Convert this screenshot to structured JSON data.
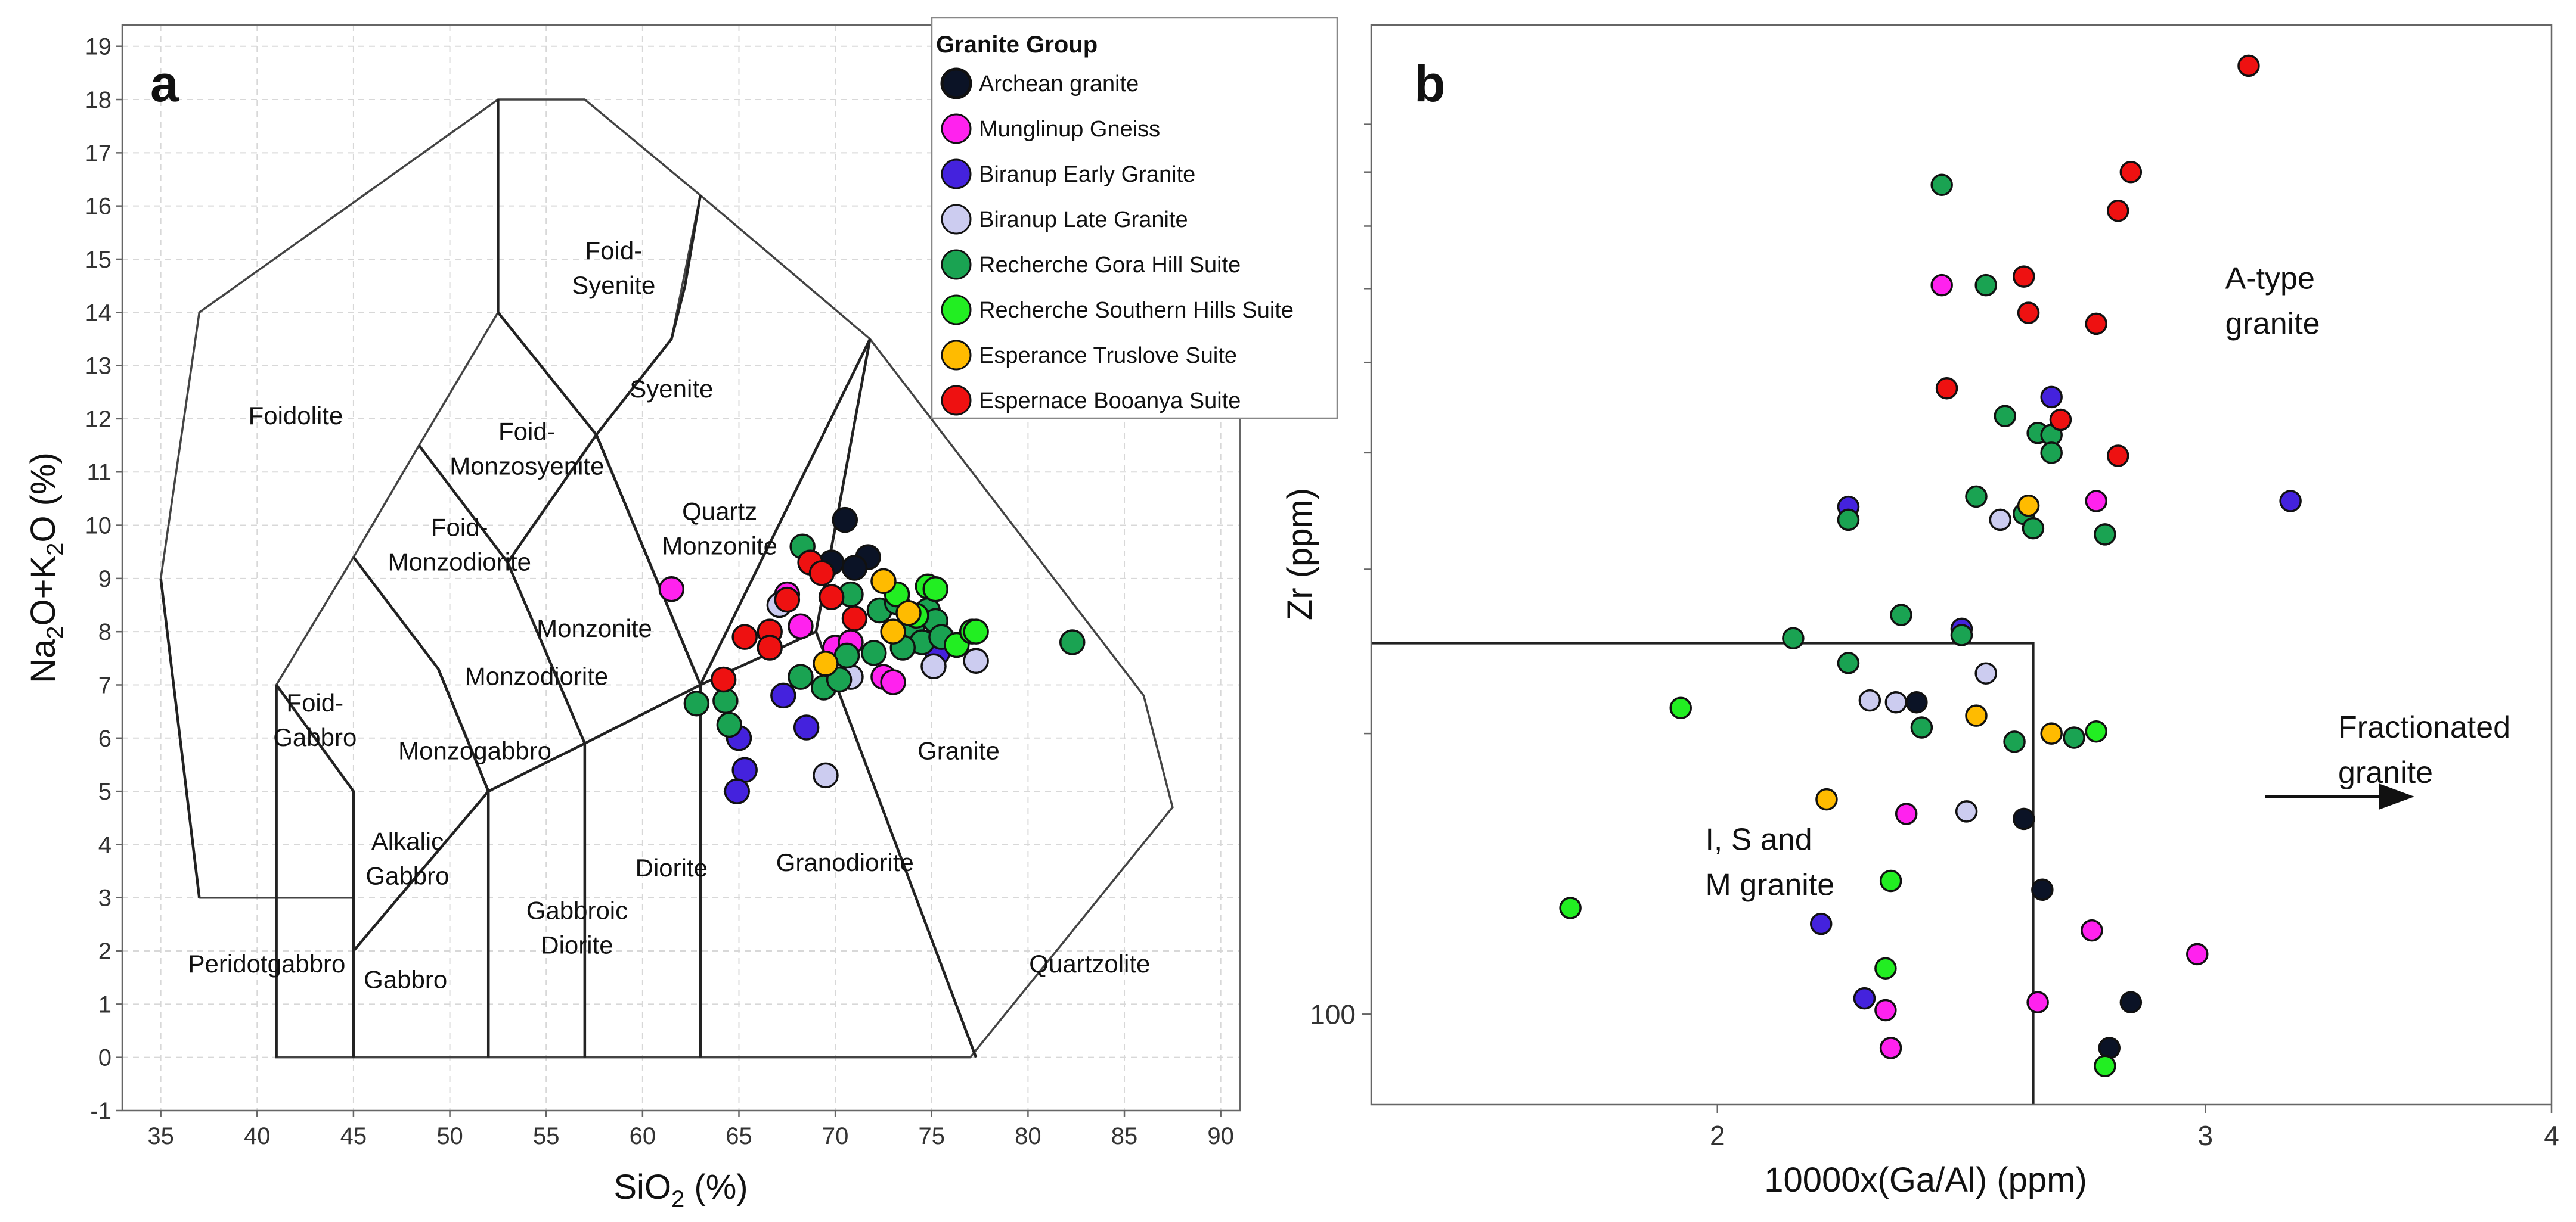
{
  "colors": {
    "archean": "#0b1326",
    "munglinup": "#ff22ee",
    "biranup_early": "#4422dd",
    "biranup_late": "#ccccf0",
    "gora": "#1aa352",
    "southern": "#22ee22",
    "truslove": "#ffbb00",
    "booanya": "#ee1111"
  },
  "chart_data": [
    {
      "type": "scatter",
      "panel": "a",
      "xlabel_main": "SiO",
      "xlabel_sub": "2",
      "xlabel_tail": " (%)",
      "ylabel_parts": [
        "Na",
        "2",
        "O+K",
        "2",
        "O (%)"
      ],
      "xlim": [
        33,
        91
      ],
      "ylim": [
        -1,
        19.4
      ],
      "xticks": [
        35,
        40,
        45,
        50,
        55,
        60,
        65,
        70,
        75,
        80,
        85,
        90
      ],
      "yticks": [
        -1,
        0,
        1,
        2,
        3,
        4,
        5,
        6,
        7,
        8,
        9,
        10,
        11,
        12,
        13,
        14,
        15,
        16,
        17,
        18,
        19
      ],
      "fields": [
        {
          "name": "Foidolite",
          "lines": [
            "Foidolite"
          ]
        },
        {
          "name": "Foid-Syenite",
          "lines": [
            "Foid-",
            "Syenite"
          ]
        },
        {
          "name": "Syenite",
          "lines": [
            "Syenite"
          ]
        },
        {
          "name": "Foid-Monzosyenite",
          "lines": [
            "Foid-",
            "Monzosyenite"
          ]
        },
        {
          "name": "Quartz Monzonite",
          "lines": [
            "Quartz",
            "Monzonite"
          ]
        },
        {
          "name": "Foid-Monzodiorite",
          "lines": [
            "Foid-",
            "Monzodiorite"
          ]
        },
        {
          "name": "Monzonite",
          "lines": [
            "Monzonite"
          ]
        },
        {
          "name": "Monzodiorite",
          "lines": [
            "Monzodiorite"
          ]
        },
        {
          "name": "Foid-Gabbro",
          "lines": [
            "Foid-",
            "Gabbro"
          ]
        },
        {
          "name": "Monzogabbro",
          "lines": [
            "Monzogabbro"
          ]
        },
        {
          "name": "Granite",
          "lines": [
            "Granite"
          ]
        },
        {
          "name": "Alkalic Gabbro",
          "lines": [
            "Alkalic",
            "Gabbro"
          ]
        },
        {
          "name": "Diorite",
          "lines": [
            "Diorite"
          ]
        },
        {
          "name": "Granodiorite",
          "lines": [
            "Granodiorite"
          ]
        },
        {
          "name": "Gabbroic Diorite",
          "lines": [
            "Gabbroic",
            "Diorite"
          ]
        },
        {
          "name": "Peridotgabbro",
          "lines": [
            "Peridotgabbro"
          ]
        },
        {
          "name": "Gabbro",
          "lines": [
            "Gabbro"
          ]
        },
        {
          "name": "Quartzolite",
          "lines": [
            "Quartzolite"
          ]
        }
      ],
      "series": [
        {
          "name": "Archean granite",
          "key": "archean",
          "points": [
            [
              70.5,
              10.1
            ],
            [
              71.7,
              9.4
            ],
            [
              69.8,
              9.3
            ],
            [
              71.0,
              9.2
            ]
          ]
        },
        {
          "name": "Munglinup Gneiss",
          "key": "munglinup",
          "points": [
            [
              61.5,
              8.8
            ],
            [
              67.5,
              8.7
            ],
            [
              68.2,
              8.1
            ],
            [
              70.0,
              7.7
            ],
            [
              70.8,
              7.8
            ],
            [
              72.5,
              7.15
            ],
            [
              73.0,
              7.05
            ]
          ]
        },
        {
          "name": "Biranup Early Granite",
          "key": "biranup_early",
          "points": [
            [
              67.3,
              6.8
            ],
            [
              65.0,
              6.0
            ],
            [
              65.3,
              5.4
            ],
            [
              64.9,
              5.0
            ],
            [
              68.5,
              6.2
            ],
            [
              75.3,
              7.6
            ]
          ]
        },
        {
          "name": "Biranup Late Granite",
          "key": "biranup_late",
          "points": [
            [
              67.1,
              8.5
            ],
            [
              70.8,
              7.15
            ],
            [
              75.1,
              7.35
            ],
            [
              77.3,
              7.45
            ],
            [
              69.5,
              5.3
            ]
          ]
        },
        {
          "name": "Recherche Gora Hill Suite",
          "key": "gora",
          "points": [
            [
              68.3,
              9.6
            ],
            [
              70.8,
              8.7
            ],
            [
              72.3,
              8.4
            ],
            [
              73.2,
              8.55
            ],
            [
              73.5,
              7.9
            ],
            [
              74.0,
              8.1
            ],
            [
              74.8,
              8.4
            ],
            [
              75.2,
              8.2
            ],
            [
              72.0,
              7.6
            ],
            [
              70.6,
              7.55
            ],
            [
              69.4,
              6.95
            ],
            [
              68.2,
              7.15
            ],
            [
              70.2,
              7.1
            ],
            [
              74.5,
              7.8
            ],
            [
              75.5,
              7.9
            ],
            [
              73.5,
              7.7
            ],
            [
              62.8,
              6.65
            ],
            [
              64.3,
              6.7
            ],
            [
              64.5,
              6.25
            ],
            [
              82.3,
              7.8
            ]
          ]
        },
        {
          "name": "Recherche Southern Hills Suite",
          "key": "southern",
          "points": [
            [
              73.2,
              8.7
            ],
            [
              74.8,
              8.85
            ],
            [
              75.2,
              8.8
            ],
            [
              76.3,
              7.75
            ],
            [
              77.1,
              8.0
            ],
            [
              77.3,
              8.0
            ],
            [
              74.2,
              8.3
            ]
          ]
        },
        {
          "name": "Esperance Truslove Suite",
          "key": "truslove",
          "points": [
            [
              72.5,
              8.95
            ],
            [
              73.8,
              8.35
            ],
            [
              69.5,
              7.4
            ],
            [
              73.0,
              8.0
            ]
          ]
        },
        {
          "name": "Espernace Booanya Suite",
          "key": "booanya",
          "points": [
            [
              68.7,
              9.3
            ],
            [
              69.3,
              9.1
            ],
            [
              67.5,
              8.6
            ],
            [
              69.8,
              8.65
            ],
            [
              71.0,
              8.25
            ],
            [
              65.3,
              7.9
            ],
            [
              66.6,
              8.0
            ],
            [
              66.6,
              7.7
            ],
            [
              64.2,
              7.1
            ]
          ]
        }
      ],
      "legend": {
        "title": "Granite Group",
        "placement": "top-right",
        "entries": [
          "Archean granite",
          "Munglinup Gneiss",
          "Biranup Early Granite",
          "Biranup Late Granite",
          "Recherche Gora Hill Suite",
          "Recherche Southern Hills Suite",
          "Esperance Truslove Suite",
          "Espernace Booanya Suite"
        ]
      }
    },
    {
      "type": "scatter",
      "panel": "b",
      "xlabel": "10000x(Ga/Al) (ppm)",
      "ylabel": "Zr (ppm)",
      "xscale": "log",
      "yscale": "log",
      "xlim": [
        1.5,
        4.0
      ],
      "ylim": [
        80,
        1150
      ],
      "xticks": [
        2,
        3,
        4
      ],
      "ytick_labels": [
        "100"
      ],
      "ytick_label_values": [
        100
      ],
      "yminor_ticks": [
        200,
        300,
        400,
        500,
        600,
        700,
        800,
        900
      ],
      "boundary": {
        "ga_al": 2.6,
        "zr": 250
      },
      "regions": [
        {
          "name": "A-type granite",
          "lines": [
            "A-type",
            "granite"
          ]
        },
        {
          "name": "I, S and M granite",
          "lines": [
            "I, S and",
            "M granite"
          ]
        },
        {
          "name": "Fractionated granite",
          "lines": [
            "Fractionated",
            "granite"
          ]
        }
      ],
      "series": [
        {
          "name": "Archean granite",
          "key": "archean",
          "points": [
            [
              2.36,
              216
            ],
            [
              2.58,
              162
            ],
            [
              2.62,
              136
            ],
            [
              2.82,
              103
            ],
            [
              2.77,
              92
            ]
          ]
        },
        {
          "name": "Munglinup Gneiss",
          "key": "munglinup",
          "points": [
            [
              2.41,
              605
            ],
            [
              2.74,
              355
            ],
            [
              2.34,
              164
            ],
            [
              2.73,
              123
            ],
            [
              2.98,
              116
            ],
            [
              2.61,
              103
            ],
            [
              2.3,
              101
            ],
            [
              2.31,
              92
            ]
          ]
        },
        {
          "name": "Biranup Early Granite",
          "key": "biranup_early",
          "points": [
            [
              2.64,
              459
            ],
            [
              2.23,
              350
            ],
            [
              2.45,
              259
            ],
            [
              3.22,
              355
            ],
            [
              2.18,
              125
            ],
            [
              2.26,
              104
            ]
          ]
        },
        {
          "name": "Biranup Late Granite",
          "key": "biranup_late",
          "points": [
            [
              2.53,
              339
            ],
            [
              2.5,
              232
            ],
            [
              2.27,
              217
            ],
            [
              2.32,
              216
            ],
            [
              2.46,
              165
            ]
          ]
        },
        {
          "name": "Recherche Gora Hill Suite",
          "key": "gora",
          "points": [
            [
              2.41,
              775
            ],
            [
              2.5,
              605
            ],
            [
              2.54,
              438
            ],
            [
              2.61,
              420
            ],
            [
              2.64,
              418
            ],
            [
              2.64,
              400
            ],
            [
              2.48,
              359
            ],
            [
              2.58,
              344
            ],
            [
              2.6,
              332
            ],
            [
              2.23,
              339
            ],
            [
              2.76,
              327
            ],
            [
              2.33,
              268
            ],
            [
              2.45,
              255
            ],
            [
              2.13,
              253
            ],
            [
              2.23,
              238
            ],
            [
              2.37,
              203
            ],
            [
              2.56,
              196
            ],
            [
              2.69,
              198
            ]
          ]
        },
        {
          "name": "Recherche Southern Hills Suite",
          "key": "southern",
          "points": [
            [
              1.94,
              213
            ],
            [
              1.77,
              130
            ],
            [
              2.31,
              139
            ],
            [
              2.3,
              112
            ],
            [
              2.74,
              201
            ],
            [
              2.76,
              88
            ]
          ]
        },
        {
          "name": "Esperance Truslove Suite",
          "key": "truslove",
          "points": [
            [
              2.59,
              351
            ],
            [
              2.48,
              209
            ],
            [
              2.64,
              200
            ],
            [
              2.19,
              170
            ]
          ]
        },
        {
          "name": "Espernace Booanya Suite",
          "key": "booanya",
          "points": [
            [
              3.11,
              1040
            ],
            [
              2.82,
              800
            ],
            [
              2.79,
              727
            ],
            [
              2.58,
              618
            ],
            [
              2.59,
              565
            ],
            [
              2.74,
              550
            ],
            [
              2.42,
              469
            ],
            [
              2.66,
              434
            ],
            [
              2.79,
              397
            ]
          ]
        }
      ]
    }
  ]
}
